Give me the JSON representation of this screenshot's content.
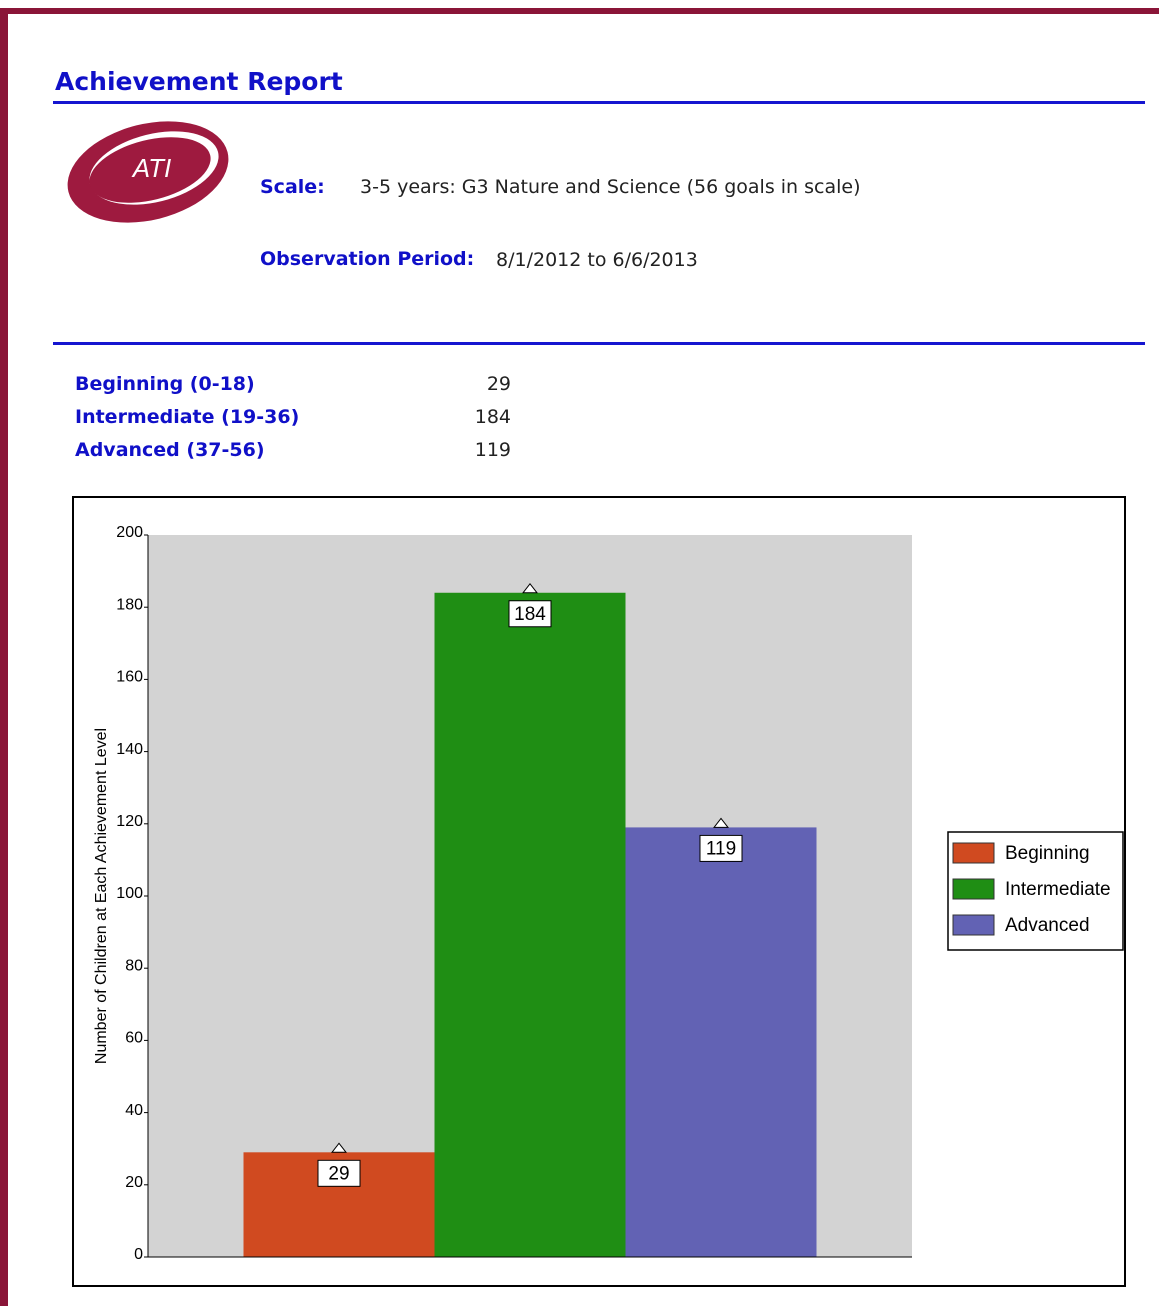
{
  "header": {
    "title": "Achievement Report",
    "logo": "ATI"
  },
  "info": {
    "scale_label": "Scale:",
    "scale_value": "3-5 years: G3 Nature and Science (56 goals in scale)",
    "period_label": "Observation Period:",
    "period_value": "8/1/2012 to 6/6/2013"
  },
  "summary": {
    "rows": [
      [
        "Beginning (0-18)",
        29
      ],
      [
        "Intermediate (19-36)",
        184
      ],
      [
        "Advanced (37-56)",
        119
      ]
    ]
  },
  "chart_data": {
    "type": "bar",
    "y_label": "Number of Children at Each Achievement Level",
    "categories": [
      null
    ],
    "series": [
      {
        "name": "Beginning",
        "color": "#d04a20",
        "values": [
          29
        ]
      },
      {
        "name": "Intermediate",
        "color": "#1f8e14",
        "values": [
          184
        ]
      },
      {
        "name": "Advanced",
        "color": "#6262b4",
        "values": [
          119
        ]
      }
    ],
    "ylim": [
      0,
      200
    ],
    "yticks": [
      0,
      20,
      40,
      60,
      80,
      100,
      120,
      140,
      160,
      180,
      200
    ],
    "legend": "right",
    "plot_background": "#d3d3d3"
  }
}
